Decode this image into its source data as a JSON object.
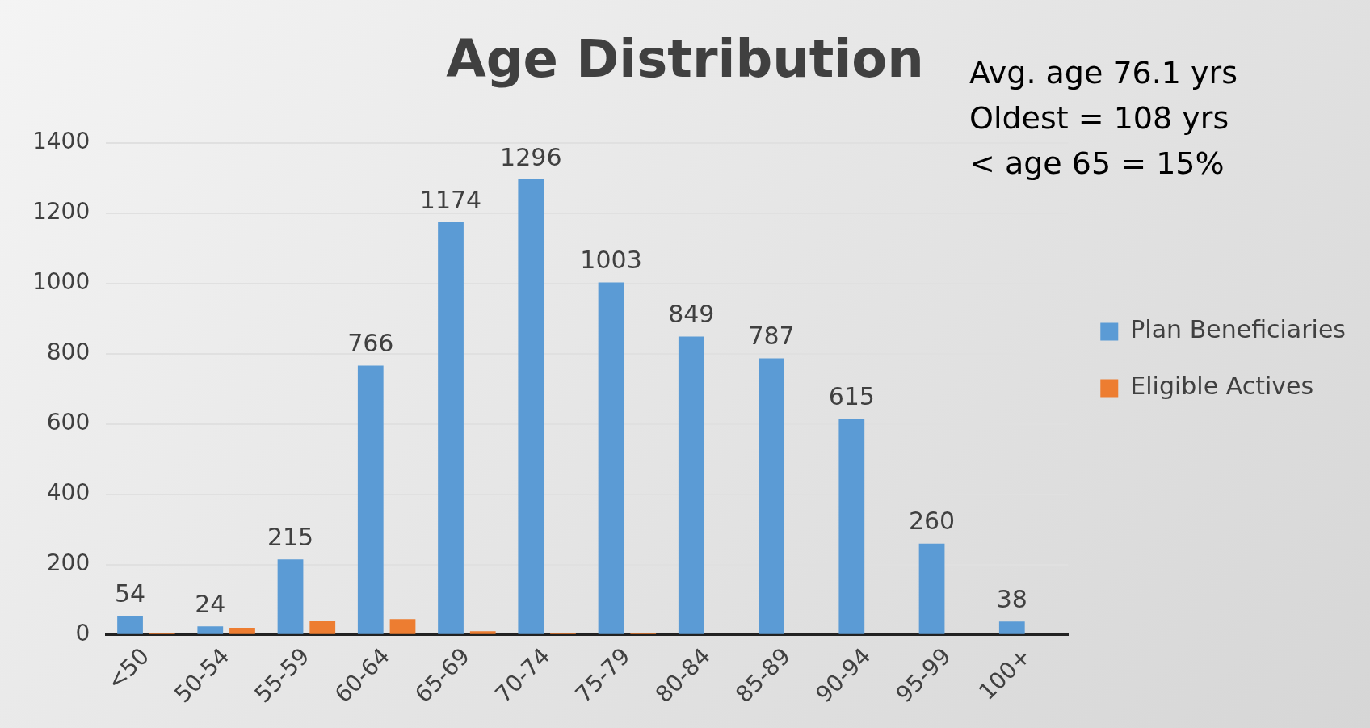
{
  "chart_data": {
    "type": "bar",
    "title": "Age Distribution",
    "categories": [
      "<50",
      "50-54",
      "55-59",
      "60-64",
      "65-69",
      "70-74",
      "75-79",
      "80-84",
      "85-89",
      "90-94",
      "95-99",
      "100+"
    ],
    "series": [
      {
        "name": "Plan Beneficiaries",
        "color": "#5b9bd5",
        "values": [
          54,
          24,
          215,
          766,
          1174,
          1296,
          1003,
          849,
          787,
          615,
          260,
          38
        ],
        "value_labels": [
          "54",
          "24",
          "215",
          "766",
          "1174",
          "1296",
          "1003",
          "849",
          "787",
          "615",
          "260",
          "38"
        ]
      },
      {
        "name": "Eligible Actives",
        "color": "#ed7d31",
        "values": [
          5,
          20,
          40,
          45,
          10,
          5,
          5,
          0,
          0,
          0,
          0,
          0
        ]
      }
    ],
    "ylim": [
      0,
      1400
    ],
    "yticks": [
      0,
      200,
      400,
      600,
      800,
      1000,
      1200,
      1400
    ],
    "grid": "y",
    "legend": "right",
    "annotations": [
      "Avg. age 76.1 yrs",
      "Oldest = 108 yrs",
      "< age 65 = 15%"
    ]
  }
}
